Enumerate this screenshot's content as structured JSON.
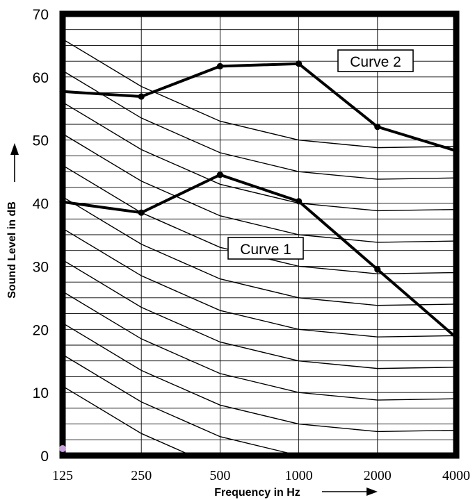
{
  "chart_data": {
    "type": "line",
    "xlabel": "Frequency in Hz",
    "ylabel": "Sound Level  in dB",
    "x_scale": "log2",
    "categories": [
      "125",
      "250",
      "500",
      "1000",
      "2000",
      "4000"
    ],
    "ylim": [
      0,
      70
    ],
    "yticks": [
      "0",
      "10",
      "20",
      "30",
      "40",
      "50",
      "60",
      "70"
    ],
    "grid": true,
    "series": [
      {
        "name": "Curve 1",
        "values": [
          40.2,
          38.5,
          44.5,
          40.3,
          29.5,
          18.7
        ]
      },
      {
        "name": "Curve 2",
        "values": [
          57.7,
          56.9,
          61.7,
          62.1,
          52.1,
          48.3
        ]
      }
    ],
    "reference_curves": [
      [
        11,
        3.5,
        -2
      ],
      [
        16,
        8.5,
        3,
        0
      ],
      [
        21,
        13.5,
        8,
        5,
        3.8,
        4
      ],
      [
        26,
        18.5,
        13,
        10,
        8.8,
        9
      ],
      [
        31,
        23.5,
        18,
        15,
        13.8,
        14
      ],
      [
        36,
        28.5,
        23,
        20,
        18.8,
        19
      ],
      [
        41,
        33.5,
        28,
        25,
        23.8,
        24
      ],
      [
        46,
        38.5,
        33,
        30,
        28.8,
        29
      ],
      [
        51,
        43.5,
        38,
        35,
        33.8,
        34
      ],
      [
        56,
        48.5,
        43,
        40,
        38.8,
        39
      ],
      [
        61,
        53.5,
        48,
        45,
        43.8,
        44
      ],
      [
        66,
        58.5,
        53,
        50,
        48.8,
        49
      ]
    ]
  },
  "colors": {
    "grid": "#000000",
    "frame": "#000000",
    "curves": "#000000",
    "marker_origin": "#c9a0dc"
  }
}
